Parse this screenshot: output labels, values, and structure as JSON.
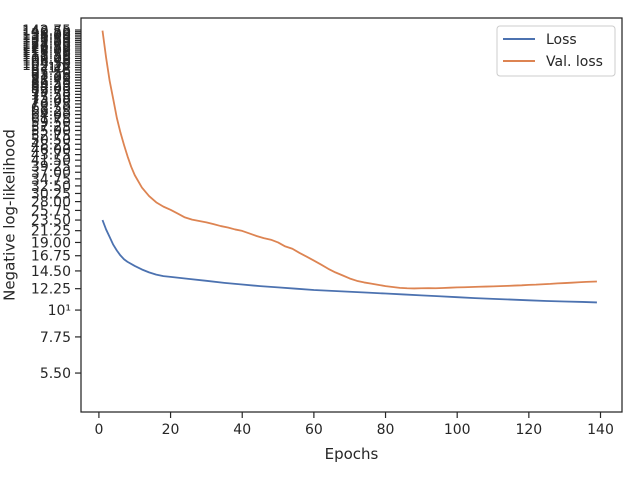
{
  "chart_data": {
    "type": "line",
    "title": "",
    "xlabel": "Epochs",
    "ylabel": "Negative log-likelihood",
    "xlim": [
      -5,
      146
    ],
    "ylim": [
      3.8,
      160
    ],
    "yscale": "log",
    "grid": false,
    "legend_position": "top-right",
    "x_ticks": [
      {
        "value": 0,
        "label": "0"
      },
      {
        "value": 20,
        "label": "20"
      },
      {
        "value": 40,
        "label": "40"
      },
      {
        "value": 60,
        "label": "60"
      },
      {
        "value": 80,
        "label": "80"
      },
      {
        "value": 100,
        "label": "100"
      },
      {
        "value": 120,
        "label": "120"
      },
      {
        "value": 140,
        "label": "140"
      }
    ],
    "y_ticks": [
      {
        "value": 5.5,
        "label": "5.50"
      },
      {
        "value": 7.75,
        "label": "7.75"
      },
      {
        "value": 10,
        "label": "10¹"
      },
      {
        "value": 12.25,
        "label": "12.25"
      },
      {
        "value": 14.5,
        "label": "14.50"
      },
      {
        "value": 16.75,
        "label": "16.75"
      },
      {
        "value": 19,
        "label": "19.00"
      },
      {
        "value": 21.25,
        "label": "21.25"
      },
      {
        "value": 23.5,
        "label": "23.50"
      },
      {
        "value": 25.75,
        "label": "25.75"
      },
      {
        "value": 28,
        "label": "28.00"
      },
      {
        "value": 30.25,
        "label": "30.25"
      },
      {
        "value": 32.5,
        "label": "32.50"
      },
      {
        "value": 34.75,
        "label": "34.75"
      },
      {
        "value": 37,
        "label": "37.00"
      },
      {
        "value": 39.25,
        "label": "39.25"
      },
      {
        "value": 41.5,
        "label": "41.50"
      },
      {
        "value": 43.75,
        "label": "43.75"
      },
      {
        "value": 46,
        "label": "46.00"
      },
      {
        "value": 48.25,
        "label": "48.25"
      },
      {
        "value": 50.5,
        "label": "50.50"
      },
      {
        "value": 52.75,
        "label": "52.75"
      },
      {
        "value": 55,
        "label": "55.00"
      },
      {
        "value": 57.25,
        "label": "57.25"
      },
      {
        "value": 59.5,
        "label": "59.50"
      },
      {
        "value": 61.75,
        "label": "61.75"
      },
      {
        "value": 64,
        "label": "64.00"
      },
      {
        "value": 66.25,
        "label": "66.25"
      },
      {
        "value": 68.5,
        "label": "68.50"
      },
      {
        "value": 70.75,
        "label": "70.75"
      },
      {
        "value": 73,
        "label": "73.00"
      },
      {
        "value": 75.25,
        "label": "75.25"
      },
      {
        "value": 77.5,
        "label": "77.50"
      },
      {
        "value": 79.75,
        "label": "79.75"
      },
      {
        "value": 82,
        "label": "82.00"
      },
      {
        "value": 84.25,
        "label": "84.25"
      },
      {
        "value": 86.5,
        "label": "86.50"
      },
      {
        "value": 88.75,
        "label": "88.75"
      },
      {
        "value": 91,
        "label": "91.00"
      },
      {
        "value": 93.25,
        "label": "93.25"
      },
      {
        "value": 95.5,
        "label": "95.50"
      },
      {
        "value": 97.75,
        "label": "97.75"
      },
      {
        "value": 100,
        "label": "10²"
      },
      {
        "value": 102.25,
        "label": "102.25"
      },
      {
        "value": 104.5,
        "label": "104.50"
      },
      {
        "value": 106.75,
        "label": "106.75"
      },
      {
        "value": 109,
        "label": "109.00"
      },
      {
        "value": 111.25,
        "label": "111.25"
      },
      {
        "value": 113.5,
        "label": "113.50"
      },
      {
        "value": 115.75,
        "label": "115.75"
      },
      {
        "value": 118,
        "label": "118.00"
      },
      {
        "value": 120.25,
        "label": "120.25"
      },
      {
        "value": 122.5,
        "label": "122.50"
      },
      {
        "value": 124.75,
        "label": "124.75"
      },
      {
        "value": 127,
        "label": "127.00"
      },
      {
        "value": 129.25,
        "label": "129.25"
      },
      {
        "value": 131.5,
        "label": "131.50"
      },
      {
        "value": 133.75,
        "label": "133.75"
      },
      {
        "value": 136,
        "label": "136.00"
      },
      {
        "value": 138.25,
        "label": "138.25"
      },
      {
        "value": 140.5,
        "label": "140.50"
      },
      {
        "value": 142.75,
        "label": "142.75"
      }
    ],
    "series": [
      {
        "name": "Loss",
        "color": "#4c72b0",
        "points": [
          [
            1,
            23.5
          ],
          [
            2,
            21.5
          ],
          [
            3,
            20
          ],
          [
            4,
            18.6
          ],
          [
            5,
            17.6
          ],
          [
            6,
            16.8
          ],
          [
            7,
            16.2
          ],
          [
            8,
            15.8
          ],
          [
            10,
            15.2
          ],
          [
            12,
            14.7
          ],
          [
            14,
            14.3
          ],
          [
            16,
            14.0
          ],
          [
            18,
            13.8
          ],
          [
            20,
            13.7
          ],
          [
            25,
            13.45
          ],
          [
            30,
            13.2
          ],
          [
            35,
            12.95
          ],
          [
            40,
            12.75
          ],
          [
            45,
            12.55
          ],
          [
            50,
            12.4
          ],
          [
            55,
            12.25
          ],
          [
            60,
            12.1
          ],
          [
            65,
            12.0
          ],
          [
            70,
            11.9
          ],
          [
            75,
            11.8
          ],
          [
            80,
            11.7
          ],
          [
            85,
            11.6
          ],
          [
            90,
            11.5
          ],
          [
            95,
            11.4
          ],
          [
            100,
            11.3
          ],
          [
            105,
            11.2
          ],
          [
            110,
            11.12
          ],
          [
            115,
            11.05
          ],
          [
            120,
            10.97
          ],
          [
            125,
            10.9
          ],
          [
            130,
            10.85
          ],
          [
            135,
            10.8
          ],
          [
            139,
            10.75
          ]
        ]
      },
      {
        "name": "Val. loss",
        "color": "#dd8452",
        "points": [
          [
            1,
            142
          ],
          [
            2,
            110
          ],
          [
            3,
            88
          ],
          [
            4,
            74
          ],
          [
            5,
            62
          ],
          [
            6,
            54
          ],
          [
            7,
            48
          ],
          [
            8,
            43
          ],
          [
            9,
            39
          ],
          [
            10,
            36
          ],
          [
            12,
            32
          ],
          [
            14,
            29.5
          ],
          [
            16,
            27.8
          ],
          [
            18,
            26.7
          ],
          [
            20,
            25.9
          ],
          [
            22,
            25.0
          ],
          [
            24,
            24.1
          ],
          [
            26,
            23.6
          ],
          [
            28,
            23.3
          ],
          [
            30,
            23.0
          ],
          [
            32,
            22.6
          ],
          [
            34,
            22.2
          ],
          [
            36,
            21.9
          ],
          [
            38,
            21.5
          ],
          [
            40,
            21.2
          ],
          [
            42,
            20.7
          ],
          [
            44,
            20.2
          ],
          [
            46,
            19.8
          ],
          [
            48,
            19.5
          ],
          [
            50,
            19.0
          ],
          [
            52,
            18.3
          ],
          [
            54,
            17.9
          ],
          [
            56,
            17.2
          ],
          [
            58,
            16.6
          ],
          [
            60,
            16.0
          ],
          [
            62,
            15.4
          ],
          [
            64,
            14.8
          ],
          [
            66,
            14.3
          ],
          [
            68,
            13.9
          ],
          [
            70,
            13.5
          ],
          [
            72,
            13.2
          ],
          [
            74,
            13.0
          ],
          [
            76,
            12.85
          ],
          [
            78,
            12.7
          ],
          [
            80,
            12.55
          ],
          [
            82,
            12.45
          ],
          [
            84,
            12.35
          ],
          [
            86,
            12.3
          ],
          [
            88,
            12.28
          ],
          [
            90,
            12.3
          ],
          [
            92,
            12.32
          ],
          [
            94,
            12.3
          ],
          [
            96,
            12.33
          ],
          [
            98,
            12.37
          ],
          [
            100,
            12.4
          ],
          [
            102,
            12.42
          ],
          [
            104,
            12.45
          ],
          [
            106,
            12.48
          ],
          [
            108,
            12.5
          ],
          [
            110,
            12.52
          ],
          [
            112,
            12.55
          ],
          [
            114,
            12.58
          ],
          [
            116,
            12.62
          ],
          [
            118,
            12.65
          ],
          [
            120,
            12.7
          ],
          [
            122,
            12.73
          ],
          [
            124,
            12.78
          ],
          [
            126,
            12.82
          ],
          [
            128,
            12.88
          ],
          [
            130,
            12.92
          ],
          [
            132,
            12.97
          ],
          [
            134,
            13.02
          ],
          [
            136,
            13.07
          ],
          [
            139,
            13.12
          ]
        ]
      }
    ]
  }
}
